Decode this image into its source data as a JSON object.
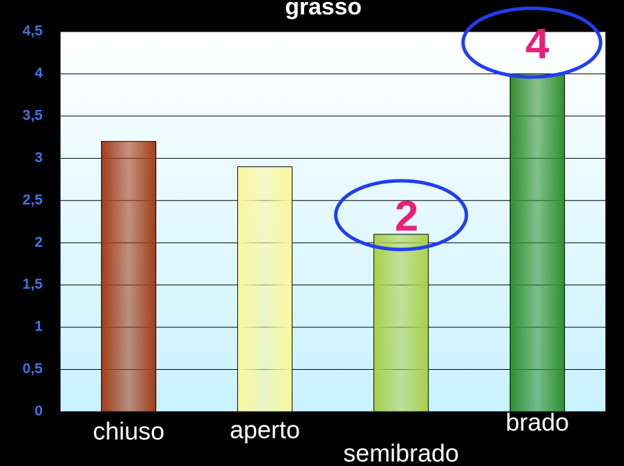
{
  "chart_data": {
    "type": "bar",
    "title": "grasso",
    "categories": [
      "chiuso",
      "aperto",
      "semibrado",
      "brado"
    ],
    "values": [
      3.2,
      2.9,
      2.1,
      4
    ],
    "colors": [
      "#a23d18",
      "#fbf79a",
      "#a9d04a",
      "#2f8f2f"
    ],
    "ylim": [
      0,
      4.5
    ],
    "yticks": [
      0,
      {
        "value": 0.5,
        "label": "0,5"
      },
      1,
      {
        "value": 1.5,
        "label": "1,5"
      },
      2,
      {
        "value": 2.5,
        "label": "2,5"
      },
      3,
      {
        "value": 3.5,
        "label": "3,5"
      },
      4,
      {
        "value": 4.5,
        "label": "4,5"
      }
    ],
    "grid": true,
    "annotations": [
      "2",
      "4"
    ]
  }
}
